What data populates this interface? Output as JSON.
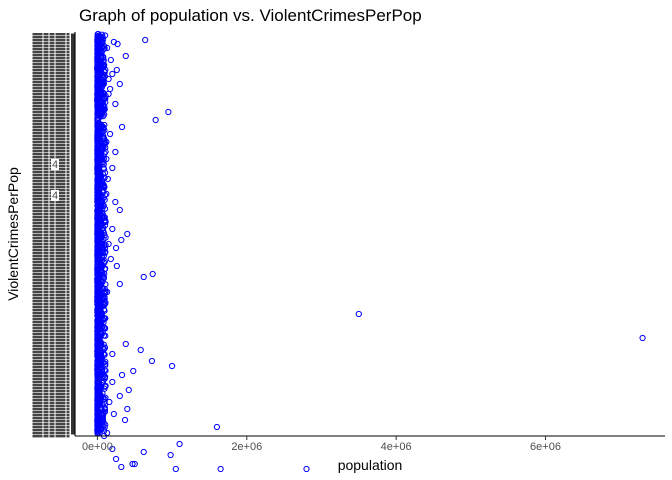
{
  "chart_data": {
    "type": "scatter",
    "title": "Graph of population vs. ViolentCrimesPerPop",
    "xlabel": "population",
    "ylabel": "ViolentCrimesPerPop",
    "xlim": [
      -300000,
      7600000
    ],
    "x_ticks": [
      0,
      2000000,
      4000000,
      6000000
    ],
    "x_tick_labels": [
      "0e+00",
      "2e+06",
      "4e+06",
      "6e+06"
    ],
    "y_axis_note": "categorical y-axis with overplotted, unreadable tick labels",
    "y_visible_tick_labels": [
      "4",
      "4"
    ],
    "point_color": "#0000ff",
    "grid": false,
    "y_level_count": 400,
    "points": [
      [
        640000,
        6
      ],
      [
        220000,
        8
      ],
      [
        270000,
        10
      ],
      [
        130000,
        14
      ],
      [
        60000,
        18
      ],
      [
        380000,
        22
      ],
      [
        180000,
        26
      ],
      [
        90000,
        31
      ],
      [
        260000,
        36
      ],
      [
        200000,
        40
      ],
      [
        150000,
        45
      ],
      [
        300000,
        50
      ],
      [
        170000,
        55
      ],
      [
        110000,
        62
      ],
      [
        240000,
        70
      ],
      [
        950000,
        78
      ],
      [
        780000,
        86
      ],
      [
        330000,
        93
      ],
      [
        170000,
        100
      ],
      [
        120000,
        108
      ],
      [
        240000,
        118
      ],
      [
        120000,
        125
      ],
      [
        200000,
        134
      ],
      [
        140000,
        145
      ],
      [
        80000,
        152
      ],
      [
        120000,
        160
      ],
      [
        240000,
        168
      ],
      [
        300000,
        176
      ],
      [
        110000,
        188
      ],
      [
        200000,
        195
      ],
      [
        400000,
        200
      ],
      [
        320000,
        206
      ],
      [
        150000,
        210
      ],
      [
        250000,
        214
      ],
      [
        70000,
        219
      ],
      [
        180000,
        225
      ],
      [
        260000,
        232
      ],
      [
        740000,
        240
      ],
      [
        620000,
        243
      ],
      [
        300000,
        250
      ],
      [
        130000,
        258
      ],
      [
        3500000,
        280
      ],
      [
        7300000,
        304
      ],
      [
        380000,
        310
      ],
      [
        580000,
        316
      ],
      [
        200000,
        320
      ],
      [
        730000,
        327
      ],
      [
        1000000,
        332
      ],
      [
        480000,
        337
      ],
      [
        330000,
        341
      ],
      [
        200000,
        348
      ],
      [
        110000,
        352
      ],
      [
        420000,
        356
      ],
      [
        300000,
        362
      ],
      [
        160000,
        368
      ],
      [
        400000,
        375
      ],
      [
        220000,
        380
      ],
      [
        370000,
        386
      ],
      [
        1600000,
        393
      ],
      [
        130000,
        399
      ],
      [
        1100000,
        410
      ],
      [
        200000,
        415
      ],
      [
        620000,
        418
      ],
      [
        980000,
        421
      ],
      [
        470000,
        430
      ],
      [
        500000,
        430
      ],
      [
        320000,
        433
      ],
      [
        1050000,
        435
      ],
      [
        1650000,
        435
      ],
      [
        2800000,
        435
      ],
      [
        250000,
        425
      ],
      [
        90000,
        402
      ],
      [
        150000,
        60
      ],
      [
        60000,
        300
      ],
      [
        80000,
        380
      ]
    ]
  }
}
